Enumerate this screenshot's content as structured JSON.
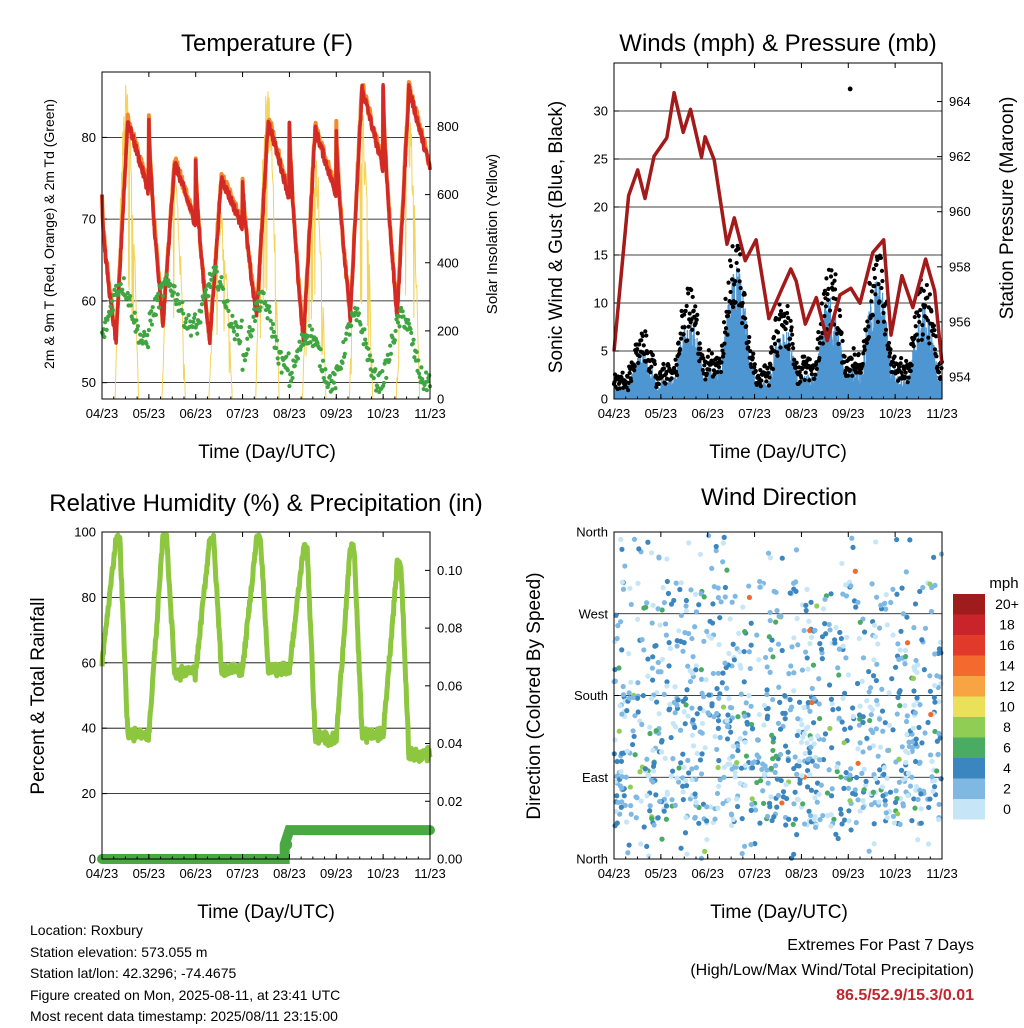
{
  "xticks": [
    "04/23",
    "05/23",
    "06/23",
    "07/23",
    "08/23",
    "09/23",
    "10/23",
    "11/23"
  ],
  "xlabel": "Time (Day/UTC)",
  "temperature": {
    "title": "Temperature (F)",
    "ylabel_left": "2m & 9m T (Red, Orange) & 2m Td (Green)",
    "ylabel_right": "Solar Insolation (Yellow)",
    "left_ticks": [
      "50",
      "60",
      "70",
      "80"
    ],
    "right_ticks": [
      "0",
      "200",
      "400",
      "600",
      "800"
    ]
  },
  "winds": {
    "title": "Winds (mph) & Pressure (mb)",
    "ylabel_left": "Sonic Wind & Gust (Blue, Black)",
    "ylabel_right": "Station Pressure (Maroon)",
    "left_ticks": [
      "0",
      "5",
      "10",
      "15",
      "20",
      "25",
      "30"
    ],
    "right_ticks": [
      "954",
      "956",
      "958",
      "960",
      "962",
      "964"
    ]
  },
  "humidity": {
    "title": "Relative Humidity (%) & Precipitation (in)",
    "ylabel_left": "Percent & Total Rainfall",
    "left_ticks": [
      "0",
      "20",
      "40",
      "60",
      "80",
      "100"
    ],
    "right_ticks": [
      "0.00",
      "0.02",
      "0.04",
      "0.06",
      "0.08",
      "0.10"
    ]
  },
  "direction": {
    "title": "Wind Direction",
    "ylabel": "Direction (Colored By Speed)",
    "yticks": [
      "North",
      "East",
      "South",
      "West",
      "North"
    ]
  },
  "legend": {
    "unit": "mph",
    "labels": [
      "20+",
      "18",
      "16",
      "14",
      "12",
      "10",
      "8",
      "6",
      "4",
      "2",
      "0"
    ],
    "colors": [
      "#a01c1c",
      "#c8242a",
      "#e23a2a",
      "#f26a2e",
      "#f9a443",
      "#ebe05a",
      "#8fcd55",
      "#4aab63",
      "#3c86c0",
      "#7fb9e3",
      "#c6e6f7"
    ]
  },
  "info": {
    "location": "Location: Roxbury",
    "elevation": "Station elevation: 573.055 m",
    "latlon": "Station lat/lon: 42.3296; -74.4675",
    "created": "Figure created on Mon, 2025-08-11, at 23:41 UTC",
    "recent": "Most recent data timestamp: 2025/08/11 23:15:00"
  },
  "extremes": {
    "line1": "Extremes For Past 7 Days",
    "line2": "(High/Low/Max Wind/Total Precipitation)",
    "values": "86.5/52.9/15.3/0.01"
  },
  "chart_data": [
    {
      "type": "line",
      "panel": "temperature",
      "x_range": [
        "04/23",
        "11/23"
      ],
      "ylim": [
        48,
        88
      ],
      "y2lim": [
        0,
        960
      ],
      "daily_max_T": [
        82,
        77,
        75,
        82,
        81,
        86,
        86
      ],
      "daily_min_T": [
        55,
        57,
        55,
        58,
        55,
        58,
        58
      ],
      "daily_Td_range": [
        [
          55,
          62
        ],
        [
          57,
          62
        ],
        [
          56,
          63
        ],
        [
          52,
          60
        ],
        [
          50,
          56
        ],
        [
          50,
          58
        ],
        [
          50,
          58
        ]
      ],
      "solar_peak": [
        940,
        720,
        560,
        960,
        800,
        880,
        900
      ],
      "series": [
        {
          "name": "2m T",
          "color": "#d42a25"
        },
        {
          "name": "9m T",
          "color": "#f58a2b"
        },
        {
          "name": "2m Td",
          "color": "#3fa540"
        },
        {
          "name": "Solar",
          "color": "#f4d35a"
        }
      ]
    },
    {
      "type": "line",
      "panel": "winds",
      "ylim": [
        0,
        35
      ],
      "y2lim": [
        953.2,
        965.4
      ],
      "pressure_points": [
        [
          0,
          955
        ],
        [
          0.8,
          960.5
        ],
        [
          1.3,
          961.6
        ],
        [
          1.7,
          960.4
        ],
        [
          2.2,
          962.1
        ],
        [
          2.9,
          962.6
        ],
        [
          3.3,
          964.4
        ],
        [
          3.8,
          962.8
        ],
        [
          4.2,
          963.8
        ],
        [
          4.8,
          961.9
        ],
        [
          5.0,
          962.8
        ],
        [
          5.5,
          961.8
        ],
        [
          6.2,
          958.9
        ],
        [
          6.6,
          959.7
        ],
        [
          7.2,
          958.3
        ],
        [
          7.8,
          958.9
        ],
        [
          8.5,
          956.2
        ],
        [
          9.2,
          957.1
        ],
        [
          9.7,
          958.0
        ],
        [
          10.0,
          957.4
        ],
        [
          10.5,
          956.0
        ],
        [
          11.1,
          956.8
        ],
        [
          11.7,
          955.4
        ],
        [
          12.4,
          956.9
        ],
        [
          13.0,
          957.3
        ],
        [
          13.5,
          956.6
        ],
        [
          14.2,
          958.6
        ],
        [
          14.8,
          958.9
        ],
        [
          15.2,
          955.6
        ],
        [
          15.8,
          957.6
        ],
        [
          16.4,
          956.6
        ],
        [
          17.1,
          958.2
        ],
        [
          17.6,
          957.2
        ],
        [
          18.0,
          954.4
        ]
      ],
      "wind_daily_peak": [
        5,
        9,
        14,
        8,
        11,
        13,
        10
      ],
      "gust_max": 32.3,
      "series": [
        {
          "name": "Sonic Wind",
          "color": "#4e96d1"
        },
        {
          "name": "Gust",
          "color": "#000000"
        },
        {
          "name": "Pressure",
          "color": "#a31a1a"
        }
      ]
    },
    {
      "type": "line",
      "panel": "humidity",
      "ylim": [
        0,
        100
      ],
      "y2lim": [
        0,
        0.1133
      ],
      "rh_daily_max": [
        98,
        98,
        98,
        98,
        95,
        95,
        90
      ],
      "rh_daily_min": [
        38,
        57,
        58,
        58,
        37,
        38,
        32
      ],
      "precip_total": [
        [
          0,
          0
        ],
        [
          3.9,
          0
        ],
        [
          3.9,
          0.005
        ],
        [
          4.0,
          0.01
        ],
        [
          7.0,
          0.01
        ]
      ],
      "series": [
        {
          "name": "RH",
          "color": "#8dc63f"
        },
        {
          "name": "Precip",
          "color": "#4aa843"
        }
      ]
    },
    {
      "type": "scatter",
      "panel": "direction",
      "y_categories": [
        "North",
        "East",
        "South",
        "West",
        "North"
      ],
      "note": "points are wind direction vs time colored by speed"
    }
  ]
}
